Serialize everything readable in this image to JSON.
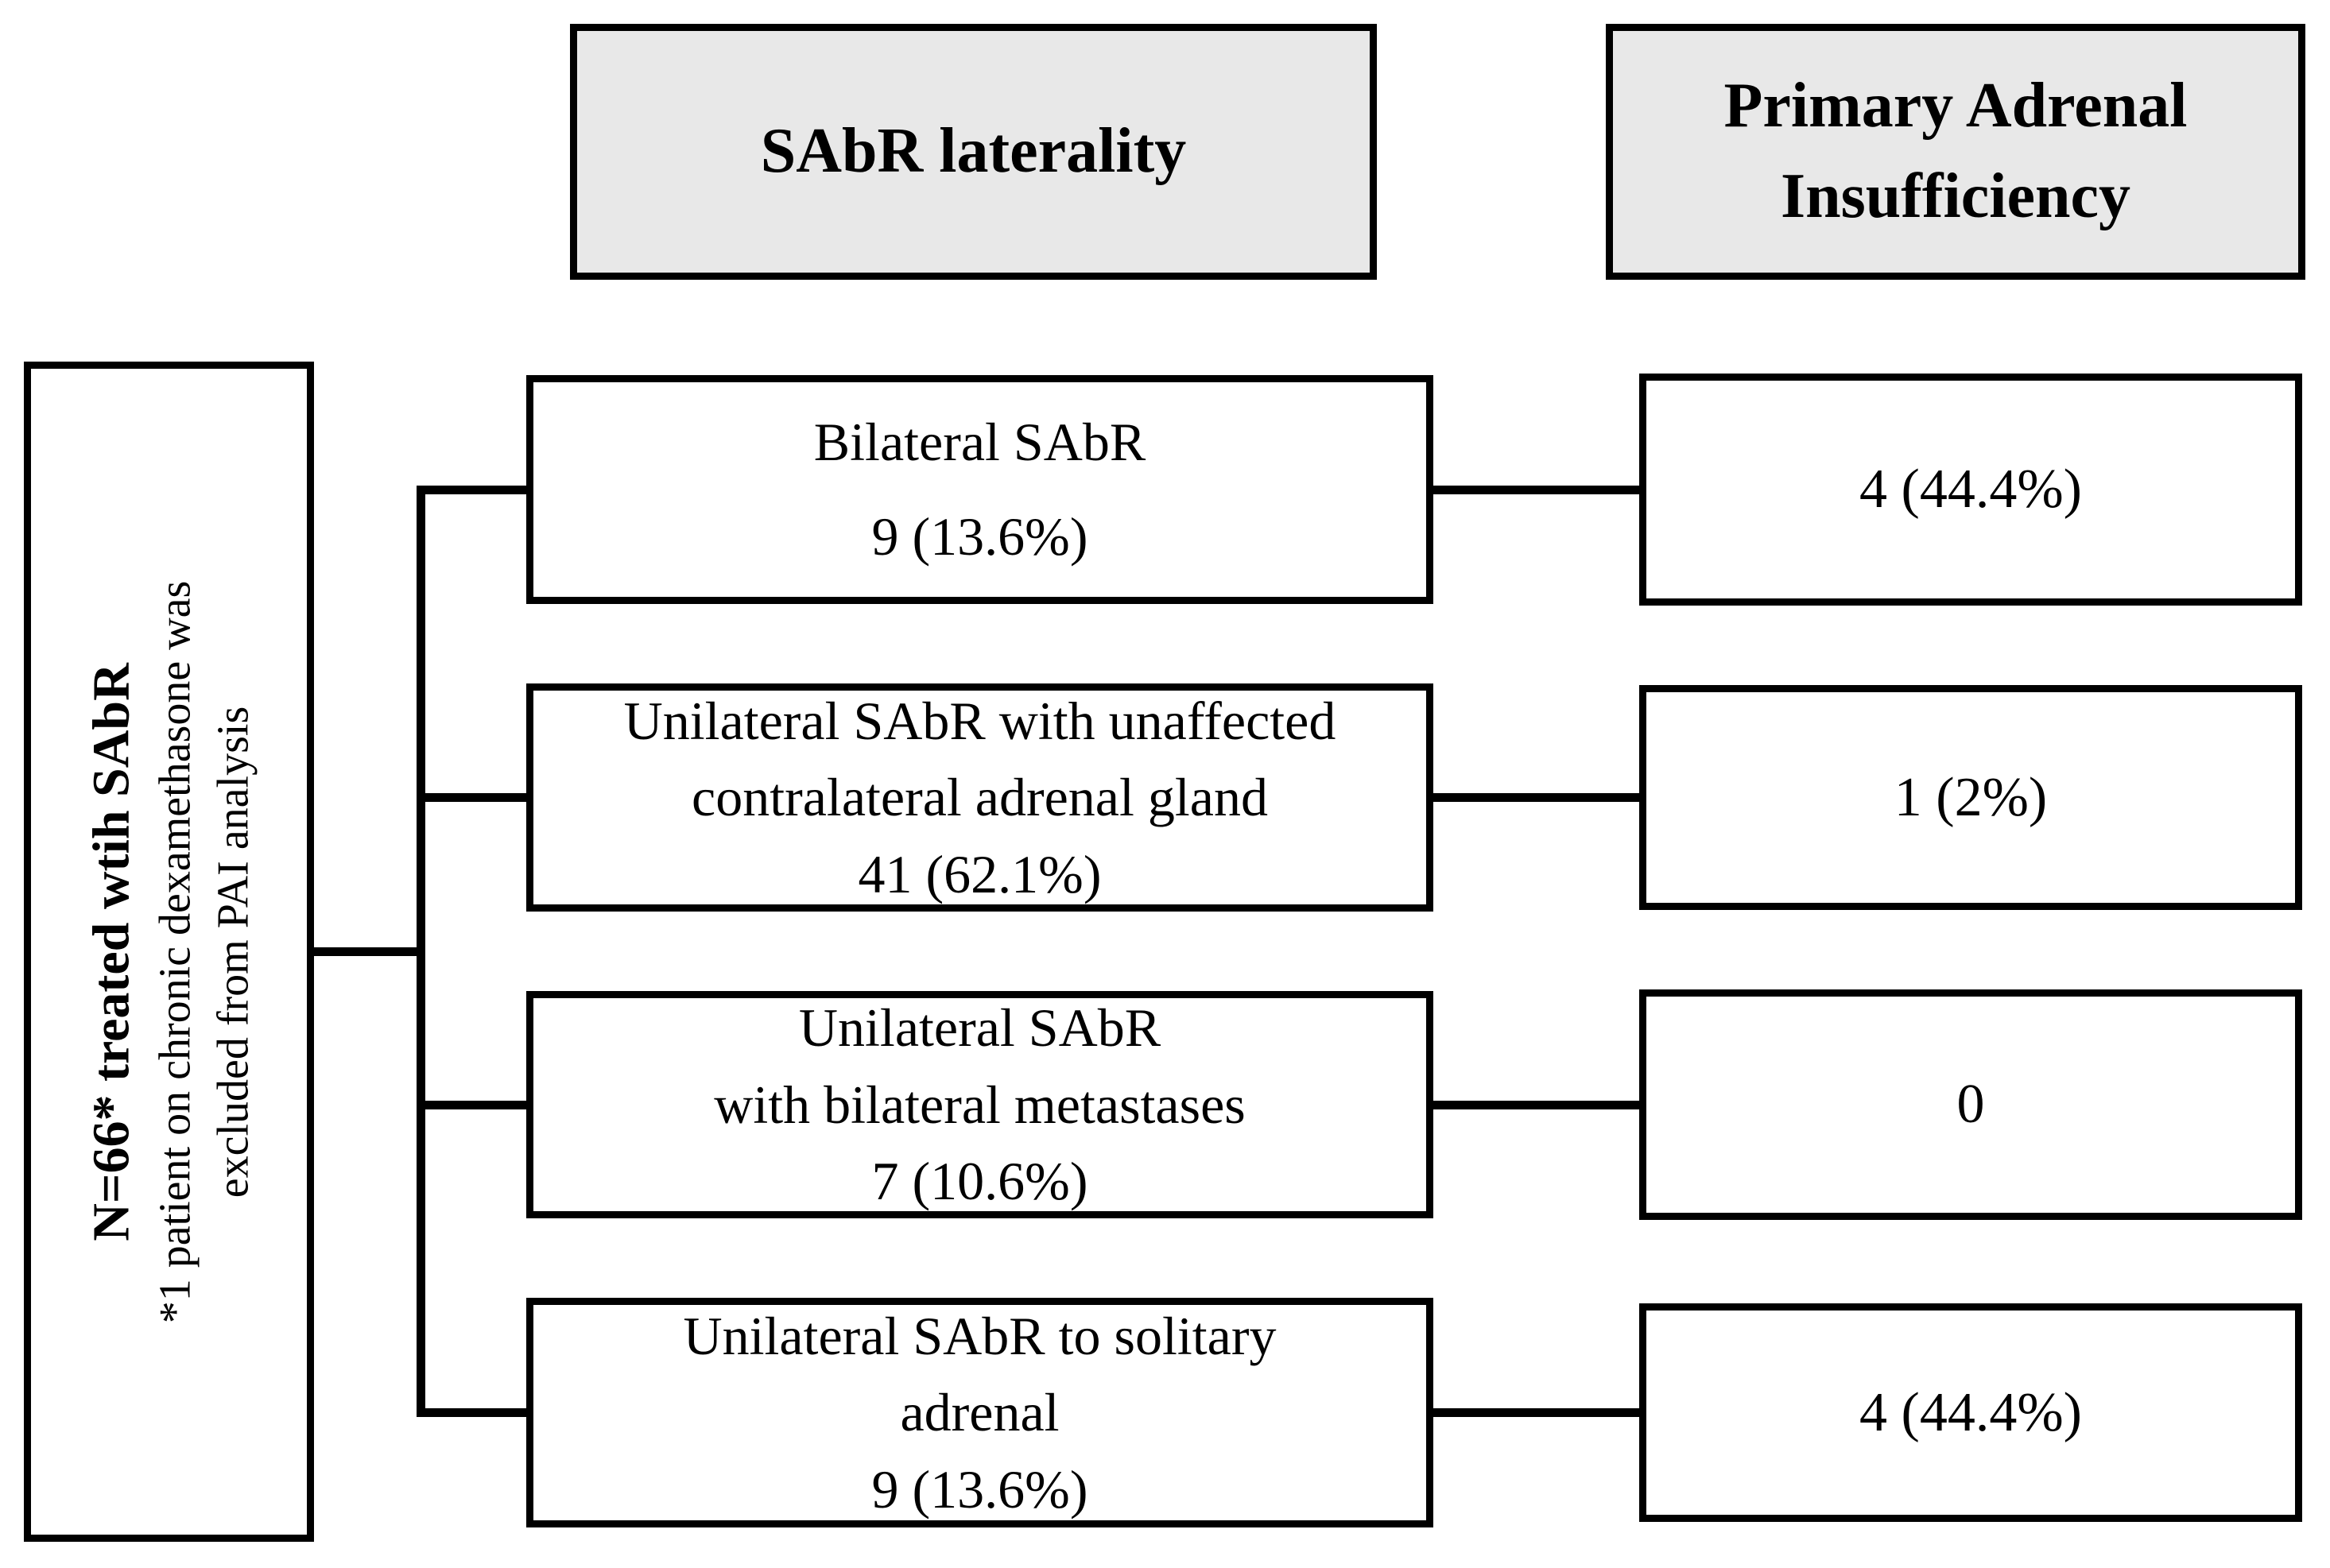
{
  "colors": {
    "background": "#ffffff",
    "header_fill": "#e8e8e8",
    "box_fill": "#ffffff",
    "border_and_lines": "#000000",
    "text": "#000000"
  },
  "headers": {
    "laterality": "SAbR laterality",
    "pai": "Primary Adrenal Insufficiency"
  },
  "cohort": {
    "title": "N=66* treated wtih SAbR",
    "footnote_line1": "*1 patient on chronic dexamethasone was",
    "footnote_line2": "excluded from PAI analysis"
  },
  "rows": [
    {
      "laterality_lines": [
        "Bilateral SAbR",
        "9 (13.6%)"
      ],
      "pai_value": "4 (44.4%)"
    },
    {
      "laterality_lines": [
        "Unilateral SAbR with unaffected",
        "contralateral adrenal gland",
        "41 (62.1%)"
      ],
      "pai_value": "1 (2%)"
    },
    {
      "laterality_lines": [
        "Unilateral SAbR",
        "with bilateral metastases",
        "7 (10.6%)"
      ],
      "pai_value": "0"
    },
    {
      "laterality_lines": [
        "Unilateral SAbR to solitary",
        "adrenal",
        "9 (13.6%)"
      ],
      "pai_value": "4 (44.4%)"
    }
  ]
}
